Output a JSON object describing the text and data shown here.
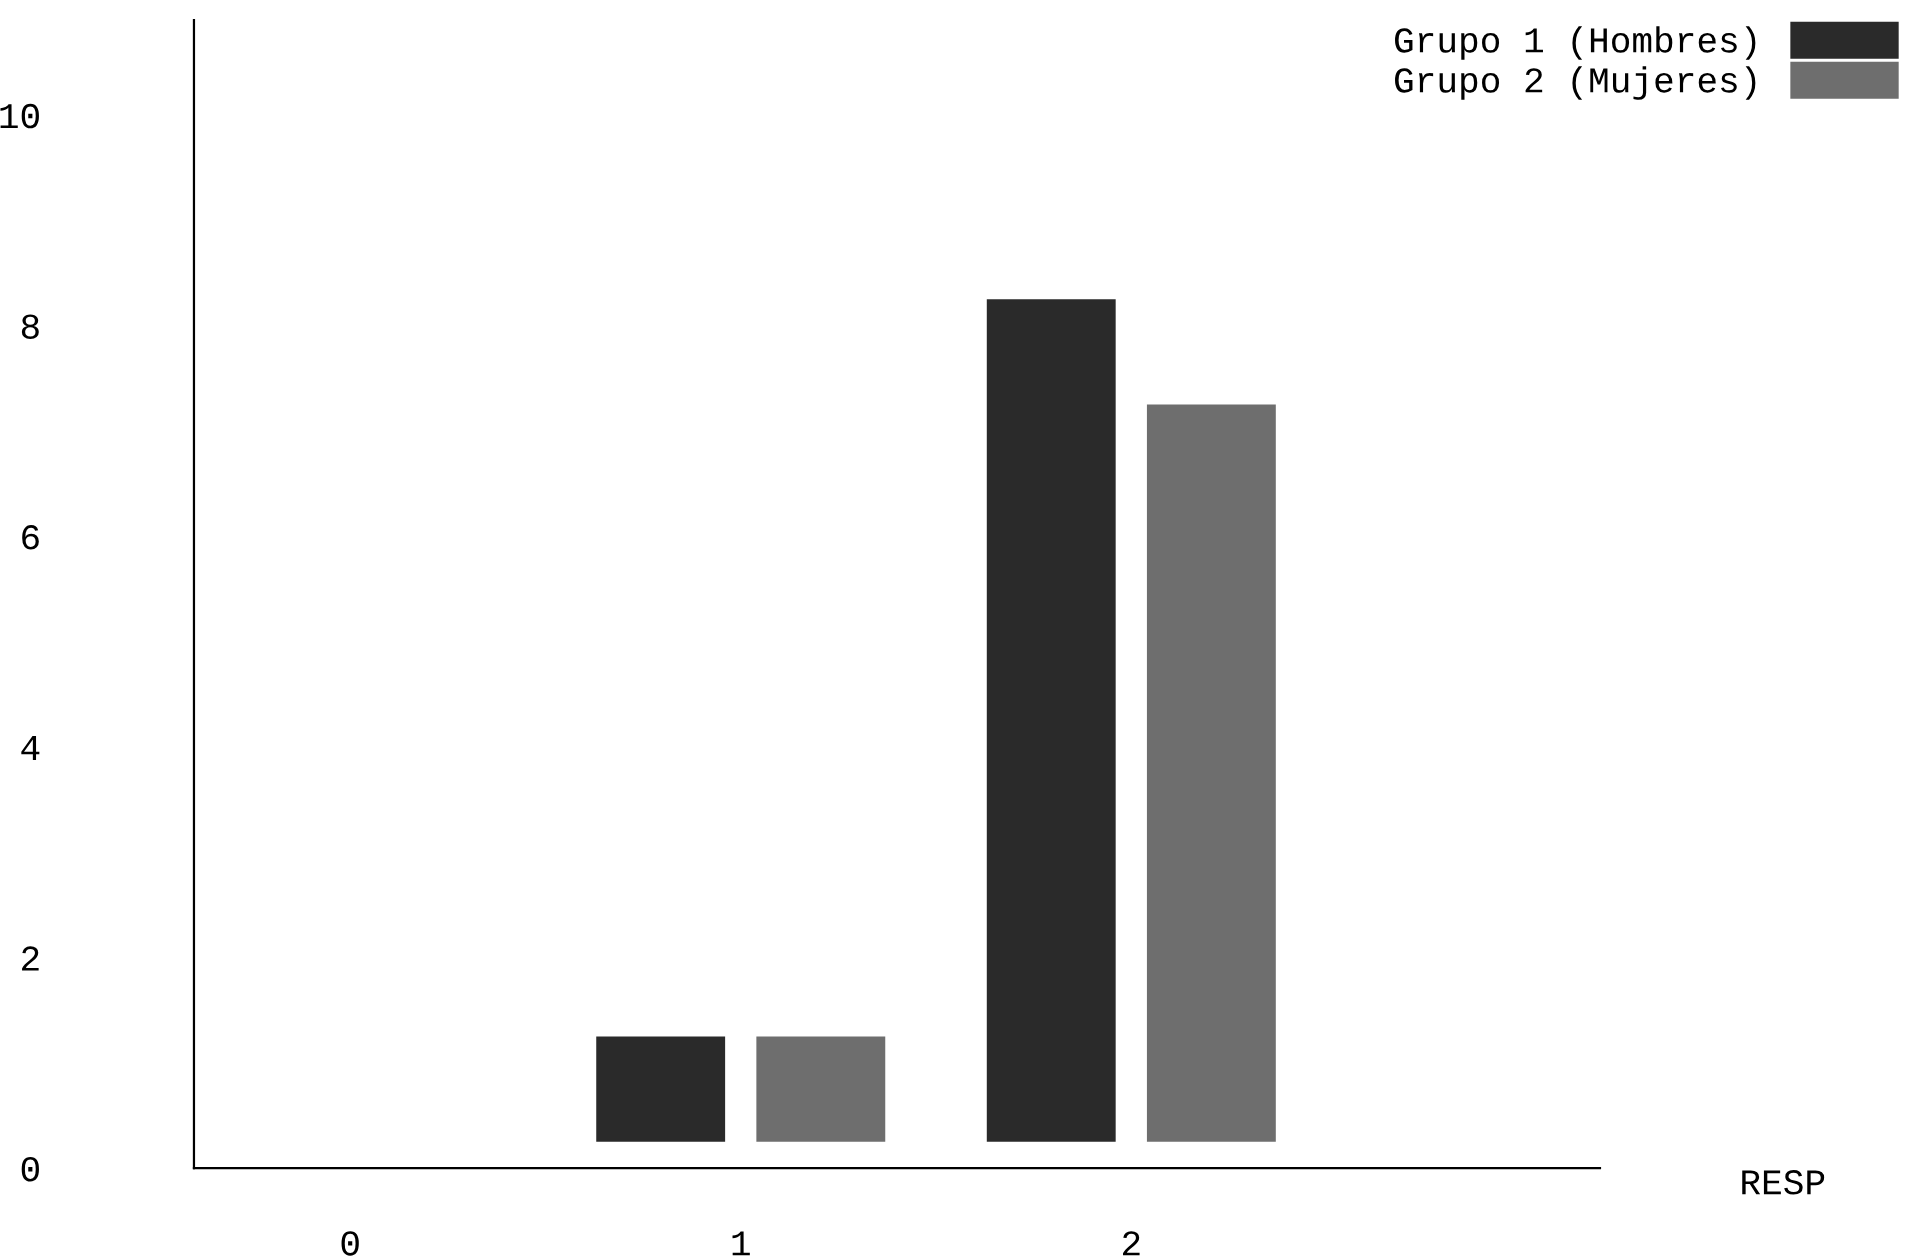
{
  "chart_data": {
    "type": "bar",
    "categories": [
      "0",
      "1",
      "2"
    ],
    "xlabel": "RESP",
    "series": [
      {
        "name": "Grupo 1 (Hombres)",
        "color": "#2a2a2a",
        "values": [
          null,
          1,
          8
        ],
        "base": [
          null,
          0.25,
          0.25
        ]
      },
      {
        "name": "Grupo 2 (Mujeres)",
        "color": "#6e6e6e",
        "values": [
          null,
          1,
          7
        ],
        "base": [
          null,
          0.25,
          0.25
        ]
      }
    ],
    "ylim": [
      0,
      10.9
    ],
    "yticks": [
      0,
      2,
      4,
      6,
      8,
      10
    ],
    "grid": false,
    "legend": "top right"
  }
}
